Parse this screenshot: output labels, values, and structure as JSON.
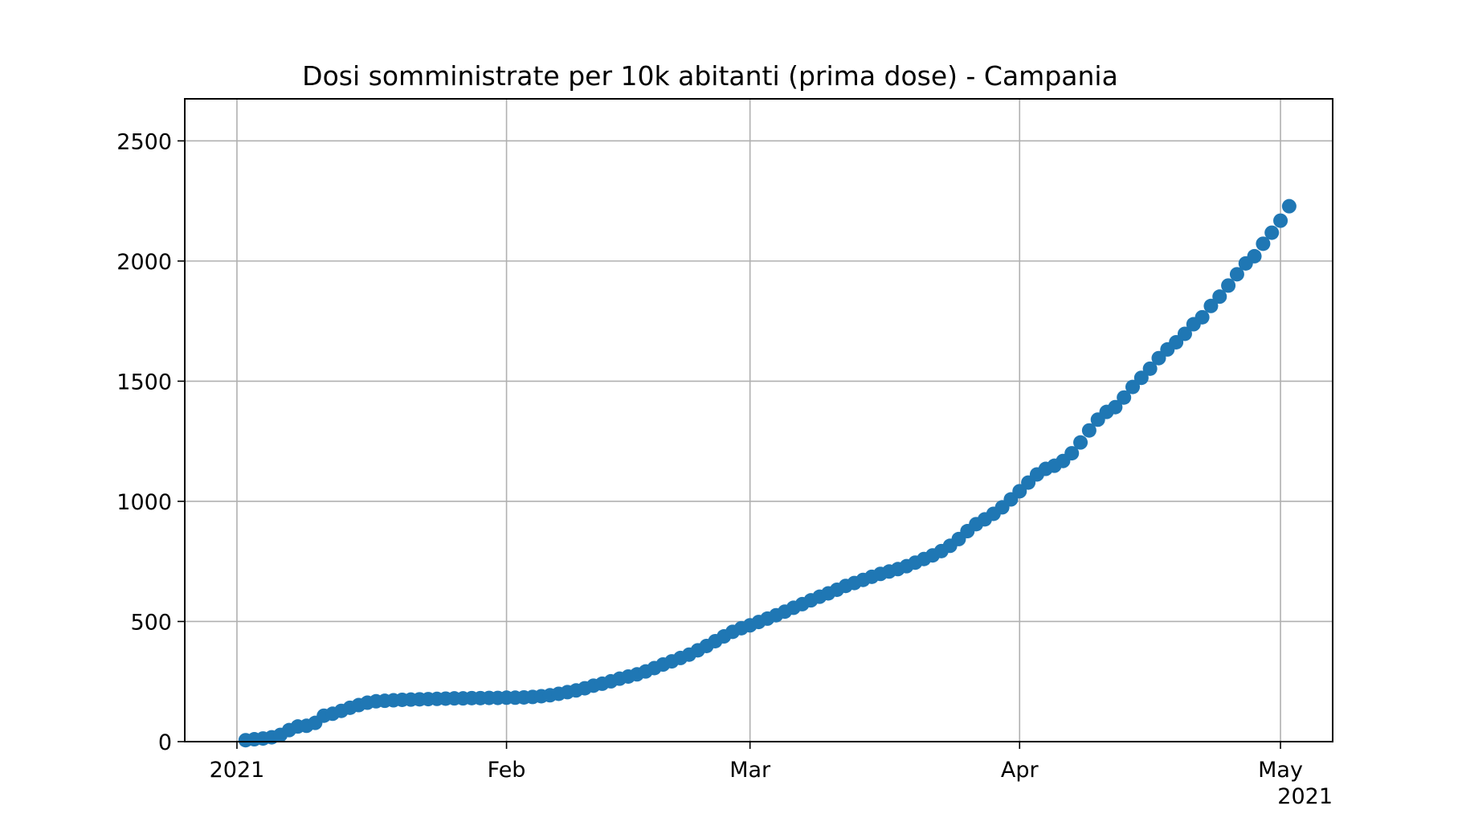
{
  "chart_data": {
    "type": "scatter",
    "title": "Dosi somministrate per 10k abitanti (prima dose) - Campania",
    "xlabel": "",
    "ylabel": "",
    "x_range": [
      "2020-12-26",
      "2021-05-07"
    ],
    "ylim": [
      0,
      2675
    ],
    "y_ticks": [
      0,
      500,
      1000,
      1500,
      2000,
      2500
    ],
    "x_ticks": [
      {
        "date": "2021-01-01",
        "label": "2021"
      },
      {
        "date": "2021-02-01",
        "label": "Feb"
      },
      {
        "date": "2021-03-01",
        "label": "Mar"
      },
      {
        "date": "2021-04-01",
        "label": "Apr"
      },
      {
        "date": "2021-05-01",
        "label": "May"
      }
    ],
    "x_offset_label": "2021",
    "grid": true,
    "marker_color": "#1f77b4",
    "series": [
      {
        "points": [
          [
            "2021-01-02",
            6
          ],
          [
            "2021-01-03",
            10
          ],
          [
            "2021-01-04",
            13
          ],
          [
            "2021-01-05",
            18
          ],
          [
            "2021-01-06",
            28
          ],
          [
            "2021-01-07",
            48
          ],
          [
            "2021-01-08",
            63
          ],
          [
            "2021-01-09",
            66
          ],
          [
            "2021-01-10",
            78
          ],
          [
            "2021-01-11",
            108
          ],
          [
            "2021-01-12",
            116
          ],
          [
            "2021-01-13",
            128
          ],
          [
            "2021-01-14",
            141
          ],
          [
            "2021-01-15",
            152
          ],
          [
            "2021-01-16",
            162
          ],
          [
            "2021-01-17",
            168
          ],
          [
            "2021-01-18",
            170
          ],
          [
            "2021-01-19",
            172
          ],
          [
            "2021-01-20",
            174
          ],
          [
            "2021-01-21",
            175
          ],
          [
            "2021-01-22",
            176
          ],
          [
            "2021-01-23",
            177
          ],
          [
            "2021-01-24",
            178
          ],
          [
            "2021-01-25",
            179
          ],
          [
            "2021-01-26",
            180
          ],
          [
            "2021-01-27",
            180
          ],
          [
            "2021-01-28",
            181
          ],
          [
            "2021-01-29",
            181
          ],
          [
            "2021-01-30",
            182
          ],
          [
            "2021-01-31",
            182
          ],
          [
            "2021-02-01",
            183
          ],
          [
            "2021-02-02",
            183
          ],
          [
            "2021-02-03",
            184
          ],
          [
            "2021-02-04",
            186
          ],
          [
            "2021-02-05",
            189
          ],
          [
            "2021-02-06",
            193
          ],
          [
            "2021-02-07",
            199
          ],
          [
            "2021-02-08",
            206
          ],
          [
            "2021-02-09",
            213
          ],
          [
            "2021-02-10",
            222
          ],
          [
            "2021-02-11",
            233
          ],
          [
            "2021-02-12",
            241
          ],
          [
            "2021-02-13",
            251
          ],
          [
            "2021-02-14",
            262
          ],
          [
            "2021-02-15",
            271
          ],
          [
            "2021-02-16",
            280
          ],
          [
            "2021-02-17",
            292
          ],
          [
            "2021-02-18",
            306
          ],
          [
            "2021-02-19",
            321
          ],
          [
            "2021-02-20",
            334
          ],
          [
            "2021-02-21",
            348
          ],
          [
            "2021-02-22",
            362
          ],
          [
            "2021-02-23",
            380
          ],
          [
            "2021-02-24",
            398
          ],
          [
            "2021-02-25",
            418
          ],
          [
            "2021-02-26",
            438
          ],
          [
            "2021-02-27",
            457
          ],
          [
            "2021-02-28",
            472
          ],
          [
            "2021-03-01",
            484
          ],
          [
            "2021-03-02",
            498
          ],
          [
            "2021-03-03",
            512
          ],
          [
            "2021-03-04",
            526
          ],
          [
            "2021-03-05",
            541
          ],
          [
            "2021-03-06",
            557
          ],
          [
            "2021-03-07",
            572
          ],
          [
            "2021-03-08",
            588
          ],
          [
            "2021-03-09",
            603
          ],
          [
            "2021-03-10",
            617
          ],
          [
            "2021-03-11",
            632
          ],
          [
            "2021-03-12",
            648
          ],
          [
            "2021-03-13",
            660
          ],
          [
            "2021-03-14",
            673
          ],
          [
            "2021-03-15",
            686
          ],
          [
            "2021-03-16",
            698
          ],
          [
            "2021-03-17",
            708
          ],
          [
            "2021-03-18",
            718
          ],
          [
            "2021-03-19",
            730
          ],
          [
            "2021-03-20",
            745
          ],
          [
            "2021-03-21",
            760
          ],
          [
            "2021-03-22",
            775
          ],
          [
            "2021-03-23",
            793
          ],
          [
            "2021-03-24",
            815
          ],
          [
            "2021-03-25",
            843
          ],
          [
            "2021-03-26",
            876
          ],
          [
            "2021-03-27",
            905
          ],
          [
            "2021-03-28",
            925
          ],
          [
            "2021-03-29",
            948
          ],
          [
            "2021-03-30",
            975
          ],
          [
            "2021-03-31",
            1008
          ],
          [
            "2021-04-01",
            1042
          ],
          [
            "2021-04-02",
            1078
          ],
          [
            "2021-04-03",
            1112
          ],
          [
            "2021-04-04",
            1135
          ],
          [
            "2021-04-05",
            1148
          ],
          [
            "2021-04-06",
            1168
          ],
          [
            "2021-04-07",
            1200
          ],
          [
            "2021-04-08",
            1245
          ],
          [
            "2021-04-09",
            1295
          ],
          [
            "2021-04-10",
            1340
          ],
          [
            "2021-04-11",
            1372
          ],
          [
            "2021-04-12",
            1392
          ],
          [
            "2021-04-13",
            1432
          ],
          [
            "2021-04-14",
            1476
          ],
          [
            "2021-04-15",
            1514
          ],
          [
            "2021-04-16",
            1552
          ],
          [
            "2021-04-17",
            1596
          ],
          [
            "2021-04-18",
            1632
          ],
          [
            "2021-04-19",
            1662
          ],
          [
            "2021-04-20",
            1697
          ],
          [
            "2021-04-21",
            1737
          ],
          [
            "2021-04-22",
            1766
          ],
          [
            "2021-04-23",
            1813
          ],
          [
            "2021-04-24",
            1852
          ],
          [
            "2021-04-25",
            1898
          ],
          [
            "2021-04-26",
            1945
          ],
          [
            "2021-04-27",
            1990
          ],
          [
            "2021-04-28",
            2020
          ],
          [
            "2021-04-29",
            2072
          ],
          [
            "2021-04-30",
            2118
          ],
          [
            "2021-05-01",
            2168
          ],
          [
            "2021-05-02",
            2228
          ]
        ]
      }
    ]
  }
}
